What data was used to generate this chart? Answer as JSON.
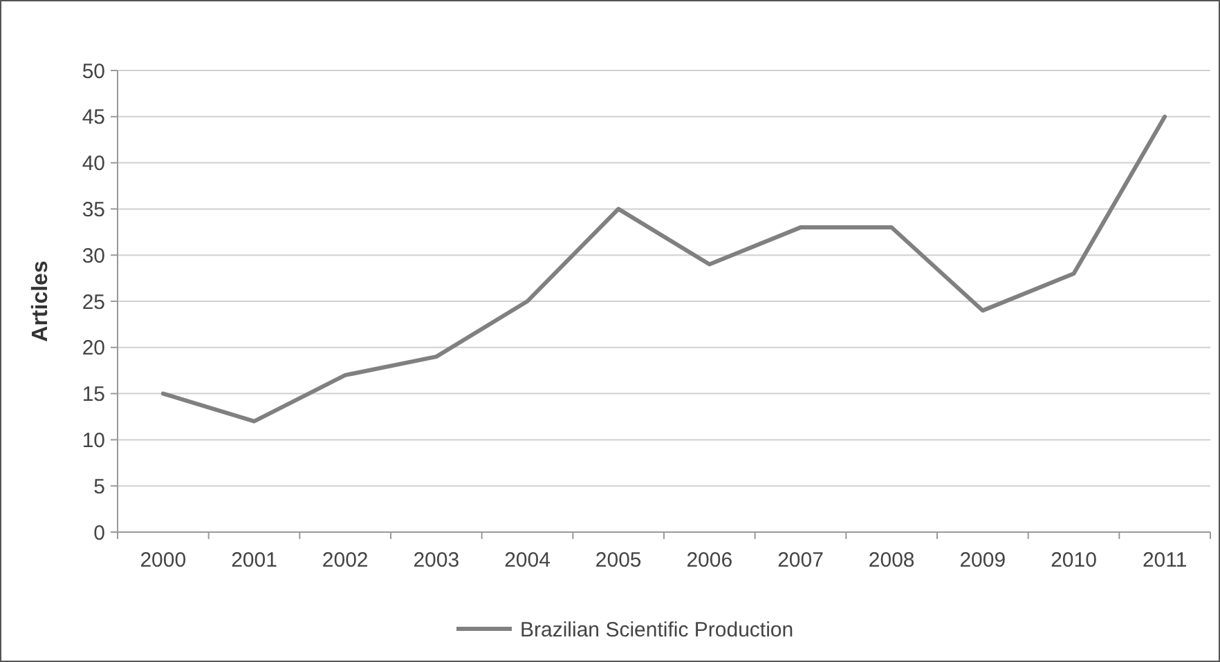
{
  "chart_data": {
    "type": "line",
    "ylabel": "Articles",
    "categories": [
      "2000",
      "2001",
      "2002",
      "2003",
      "2004",
      "2005",
      "2006",
      "2007",
      "2008",
      "2009",
      "2010",
      "2011"
    ],
    "series": [
      {
        "name": "Brazilian Scientific Production",
        "color": "#808080",
        "values": [
          15,
          12,
          17,
          19,
          25,
          35,
          29,
          33,
          33,
          24,
          28,
          45
        ]
      }
    ],
    "ylim": [
      0,
      50
    ],
    "yticks": [
      0,
      5,
      10,
      15,
      20,
      25,
      30,
      35,
      40,
      45,
      50
    ],
    "grid": "y",
    "legend": "bottom",
    "marker": "none",
    "line_style": "solid"
  }
}
